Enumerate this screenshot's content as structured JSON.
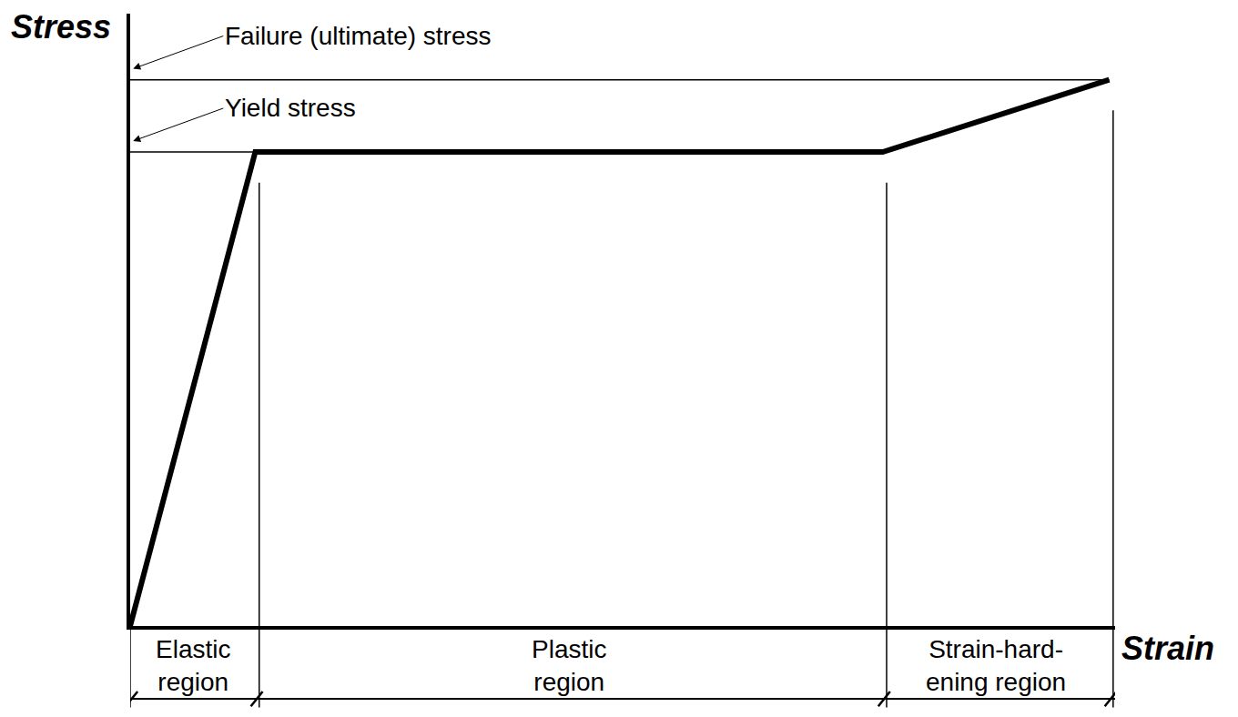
{
  "chart_data": {
    "type": "line",
    "x_label": "Strain",
    "y_label": "Stress",
    "x": [
      0,
      12.7,
      76.4,
      99.4
    ],
    "values": [
      0,
      77.4,
      77.4,
      89.2
    ],
    "color": "#000000",
    "xlim": [
      0,
      100
    ],
    "ylim": [
      0,
      100
    ],
    "xticks": [],
    "yticks": [],
    "tick_labels": false,
    "grid": false,
    "reference_lines": [
      {
        "label": "Failure (ultimate) stress",
        "value": 89.2
      },
      {
        "label": "Yield stress",
        "value": 77.4
      }
    ],
    "regions": [
      {
        "label": "Elastic\nregion",
        "from": 0,
        "to": 12.7
      },
      {
        "label": "Plastic\nregion",
        "from": 12.7,
        "to": 76.4
      },
      {
        "label": "Strain-hard-\nening region",
        "from": 76.4,
        "to": 99.4
      }
    ]
  }
}
